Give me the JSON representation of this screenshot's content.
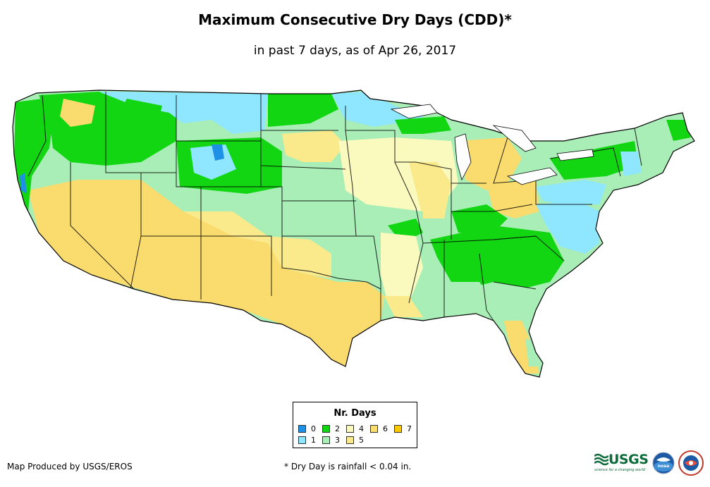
{
  "title": "Maximum Consecutive Dry Days (CDD)*",
  "subtitle": "in past 7 days, as of Apr 26, 2017",
  "legend": {
    "title": "Nr. Days",
    "items": [
      {
        "label": "0",
        "color": "#1e90e6"
      },
      {
        "label": "1",
        "color": "#8ee6ff"
      },
      {
        "label": "2",
        "color": "#11d611"
      },
      {
        "label": "3",
        "color": "#a8eeb6"
      },
      {
        "label": "4",
        "color": "#fafabe"
      },
      {
        "label": "5",
        "color": "#faea8c"
      },
      {
        "label": "6",
        "color": "#fadc6e"
      },
      {
        "label": "7",
        "color": "#fac800"
      }
    ]
  },
  "footer": {
    "credit": "Map Produced by USGS/EROS",
    "note": "* Dry Day is rainfall < 0.04 in."
  },
  "logos": {
    "usgs_text": "USGS",
    "usgs_tagline": "science for a changing world",
    "noaa_text": "noaa"
  }
}
